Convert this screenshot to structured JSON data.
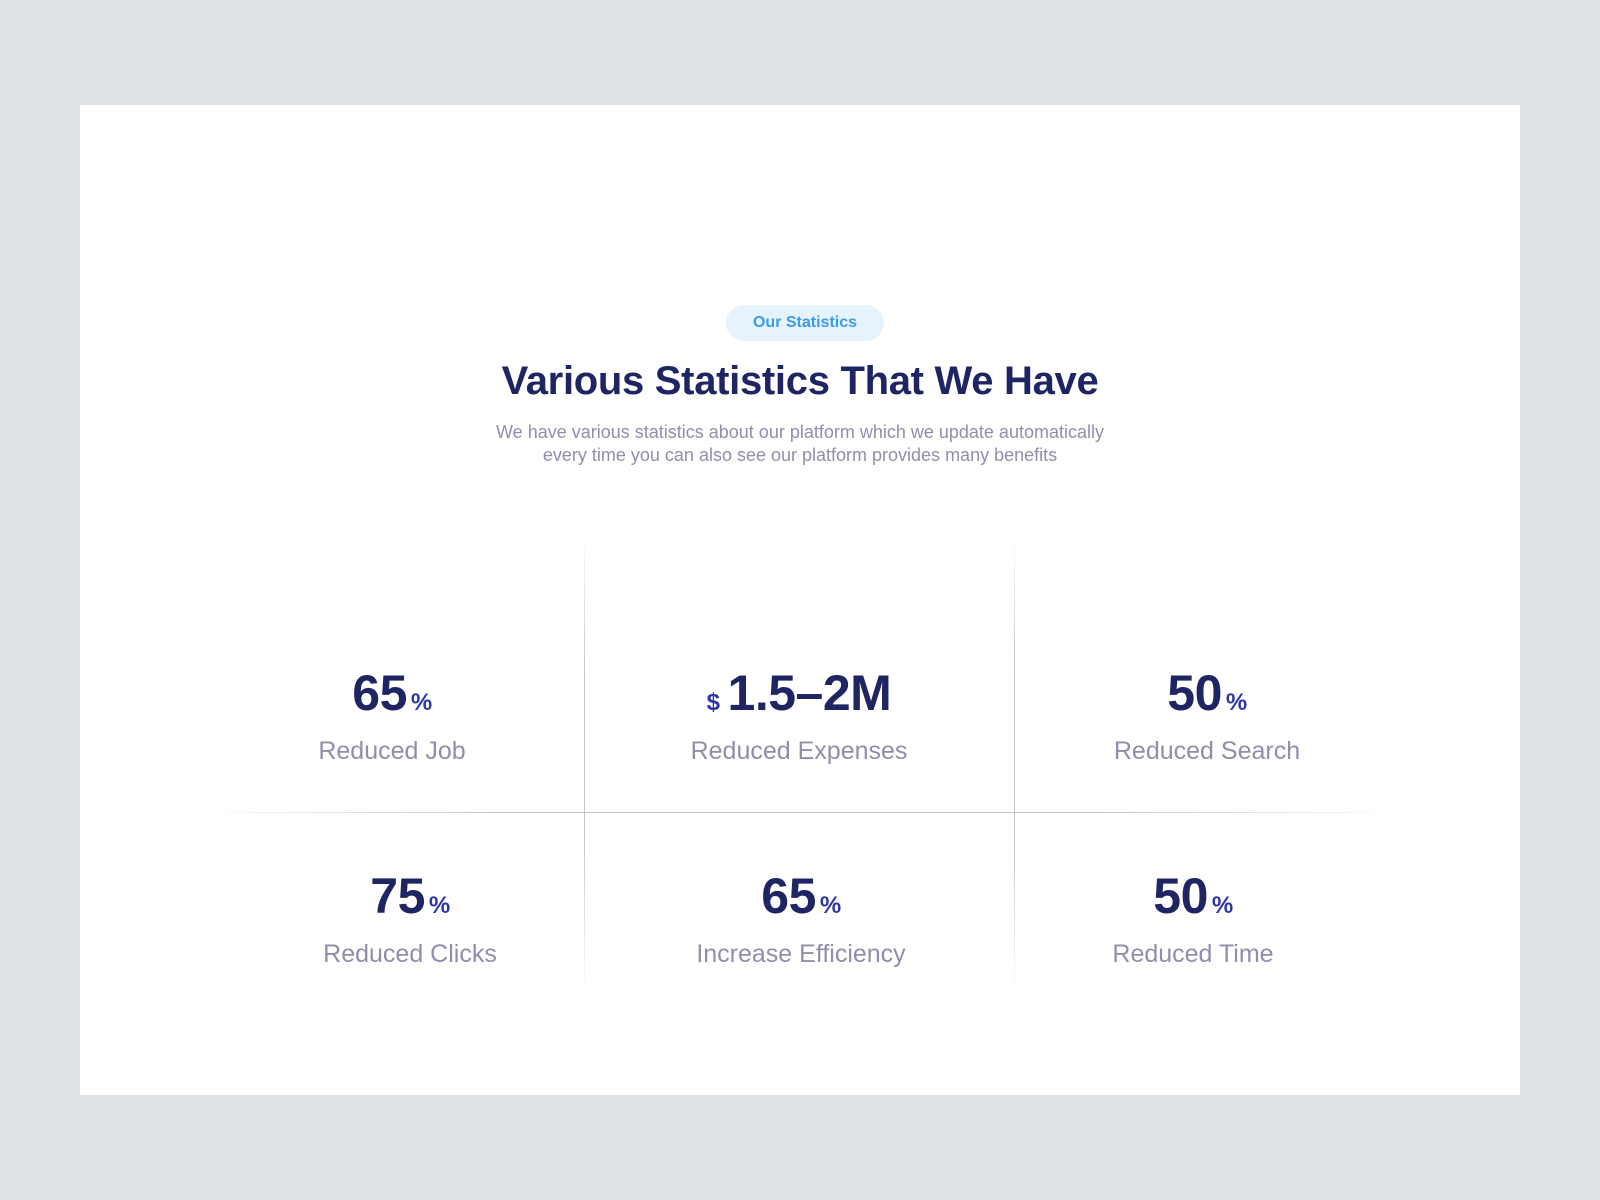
{
  "section": {
    "badge": "Our Statistics",
    "title": "Various Statistics That We Have",
    "subtitle_line1": "We have various statistics about our platform which we update automatically",
    "subtitle_line2": "every time you can also see our platform provides many benefits"
  },
  "stats": [
    {
      "value": "65",
      "unit": "%",
      "label": "Reduced Job"
    },
    {
      "prefix": "$",
      "value": "1.5–2M",
      "label": "Reduced Expenses"
    },
    {
      "value": "50",
      "unit": "%",
      "label": "Reduced Search"
    },
    {
      "value": "75",
      "unit": "%",
      "label": "Reduced Clicks"
    },
    {
      "value": "65",
      "unit": "%",
      "label": "Increase Efficiency"
    },
    {
      "value": "50",
      "unit": "%",
      "label": "Reduced Time"
    }
  ],
  "colors": {
    "background": "#dfe2e6",
    "card": "#ffffff",
    "heading": "#1f2563",
    "accent": "#2e36a6",
    "muted": "#8f8fab",
    "badge_bg": "#e6f3fd",
    "badge_text": "#3a9be8"
  }
}
